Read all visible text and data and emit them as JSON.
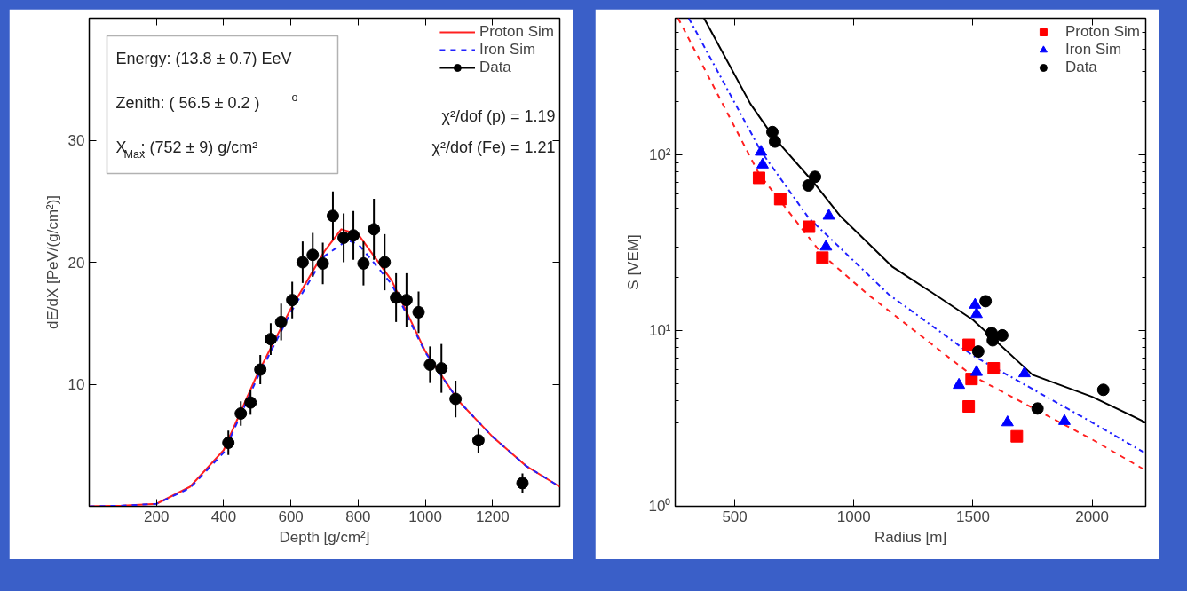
{
  "chart_data": [
    {
      "type": "line",
      "xlabel": "Depth [g/cm²]",
      "ylabel": "dE/dX [PeV/(g/cm²)]",
      "xlim": [
        0,
        1400
      ],
      "ylim": [
        0,
        40
      ],
      "xticks": [
        200,
        400,
        600,
        800,
        1000,
        1200
      ],
      "yticks": [
        10,
        20,
        30
      ],
      "legend": "top right",
      "grid": false,
      "annotations": [
        "Energy: (13.8 ± 0.7) EeV",
        "Zenith: ( 56.5 ± 0.2 )$^{o}$",
        "X$_{Max}$: (752 ± 9) g/cm²",
        "χ²/dof (p) = 1.19",
        "χ²/dof (Fe) = 1.21"
      ],
      "series": [
        {
          "name": "Proton Sim",
          "color": "#ff2020",
          "line_style": "solid",
          "x": [
            0,
            100,
            200,
            300,
            400,
            500,
            600,
            700,
            750,
            800,
            900,
            1000,
            1100,
            1200,
            1300,
            1400
          ],
          "values": [
            0,
            0.05,
            0.2,
            1.6,
            4.6,
            10.8,
            16.2,
            20.9,
            22.7,
            22.3,
            18.5,
            12.7,
            8.6,
            5.7,
            3.3,
            1.6
          ]
        },
        {
          "name": "Iron Sim",
          "color": "#2020ff",
          "line_style": "dashed",
          "x": [
            0,
            100,
            200,
            300,
            400,
            500,
            600,
            700,
            768,
            800,
            900,
            1000,
            1100,
            1200,
            1300,
            1400
          ],
          "values": [
            0,
            0.05,
            0.2,
            1.5,
            4.4,
            10.5,
            15.9,
            20.5,
            21.8,
            21.5,
            18.2,
            12.6,
            8.6,
            5.7,
            3.3,
            1.6
          ]
        },
        {
          "name": "Data",
          "type": "scatter",
          "color": "#000000",
          "marker": "circle",
          "x": [
            414,
            451,
            480,
            509,
            540,
            571,
            604,
            635,
            665,
            695,
            725,
            757,
            786,
            816,
            847,
            879,
            913,
            944,
            980,
            1014,
            1048,
            1090,
            1158,
            1289
          ],
          "values": [
            5.2,
            7.6,
            8.5,
            11.2,
            13.7,
            15.1,
            16.9,
            20.0,
            20.6,
            19.9,
            23.8,
            22.0,
            22.2,
            19.9,
            22.7,
            20.0,
            17.1,
            16.9,
            15.9,
            11.6,
            11.3,
            8.8,
            5.4,
            1.9
          ],
          "errors": [
            1,
            1,
            1,
            1.2,
            1.3,
            1.5,
            1.5,
            1.7,
            1.8,
            1.7,
            2,
            2,
            2,
            1.8,
            2.5,
            2.3,
            2,
            2.2,
            1.7,
            1.5,
            2,
            1.5,
            1,
            0.8
          ]
        }
      ]
    },
    {
      "type": "scatter",
      "xlabel": "Radius [m]",
      "ylabel": "S [VEM]",
      "log": "y",
      "xlim": [
        250,
        2225
      ],
      "ylim": [
        1,
        600
      ],
      "xticks": [
        500,
        1000,
        1500,
        2000
      ],
      "yticks": [
        {
          "value": 1,
          "label": "10⁰"
        },
        {
          "value": 10,
          "label": "10¹"
        },
        {
          "value": 100,
          "label": "10²"
        }
      ],
      "legend": "top right",
      "grid": false,
      "series": [
        {
          "type": "line",
          "color": "#ff2020",
          "line_style": "dashed",
          "x": [
            262,
            602,
            868,
            1060,
            1500,
            2000,
            2225
          ],
          "values": [
            600,
            78,
            27,
            16,
            5.5,
            2.4,
            1.6
          ]
        },
        {
          "type": "line",
          "color": "#2020ff",
          "line_style": "dashdot",
          "x": [
            307,
            610,
            809,
            1148,
            1500,
            2000,
            2225
          ],
          "values": [
            600,
            105,
            44,
            16,
            7.2,
            3.0,
            2.0
          ]
        },
        {
          "type": "line",
          "color": "#000000",
          "line_style": "solid",
          "x": [
            371,
            566,
            660,
            830,
            942,
            1163,
            1327,
            1500,
            1750,
            2000,
            2225
          ],
          "values": [
            600,
            195,
            128,
            70,
            45,
            23,
            16.5,
            11.5,
            5.6,
            4.2,
            3.0
          ]
        },
        {
          "name": "Proton Sim",
          "color": "#ff0000",
          "marker": "square",
          "x": [
            602,
            691,
            812,
            868,
            1482,
            1494,
            1482,
            1587,
            1684
          ],
          "values": [
            74,
            56,
            39,
            26,
            8.3,
            5.3,
            3.7,
            6.1,
            2.5
          ]
        },
        {
          "name": "Iron Sim",
          "color": "#0000ff",
          "marker": "triangle",
          "x": [
            610,
            617,
            895,
            883,
            1509,
            1515,
            1441,
            1515,
            1645,
            1716,
            1884
          ],
          "values": [
            104,
            88,
            45,
            30,
            14,
            12.4,
            4.9,
            5.8,
            3.0,
            5.7,
            3.05
          ]
        },
        {
          "name": "Data",
          "color": "#000000",
          "marker": "circle",
          "x": [
            658,
            669,
            809,
            837,
            1553,
            1578,
            1583,
            1623,
            1522,
            1771,
            2047
          ],
          "values": [
            135,
            119,
            67,
            75,
            14.7,
            9.7,
            8.8,
            9.4,
            7.6,
            3.6,
            4.6
          ]
        }
      ]
    }
  ]
}
